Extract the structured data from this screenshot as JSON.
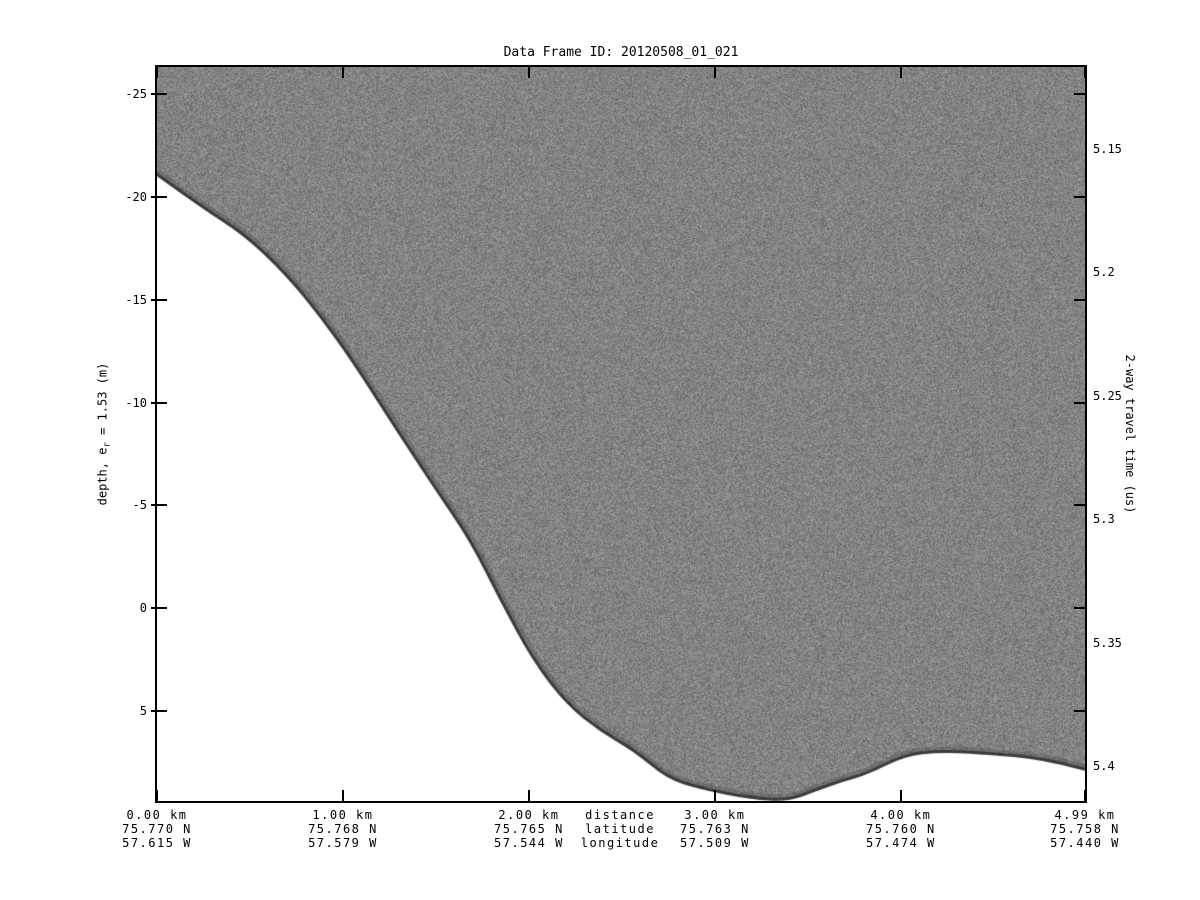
{
  "chart_data": {
    "type": "heatmap",
    "title": "Data Frame ID: 20120508_01_021",
    "description_visible": "Radar echogram: gray speckle region above a white region separated by the surface return curve",
    "axes": {
      "x": {
        "unit": "km",
        "min": 0,
        "max": 4.99,
        "ticks": [
          0,
          1,
          2,
          3,
          4,
          4.99
        ]
      },
      "depth": {
        "label": "depth, e_r = 1.53 (m)",
        "label_pre": "depth, e",
        "label_sub": "r",
        "label_post": " = 1.53 (m)",
        "min": -26.31,
        "max": 9.37,
        "ticks": [
          -25,
          -20,
          -15,
          -10,
          -5,
          0,
          5
        ]
      },
      "travel_time": {
        "label": "2-way travel time (us)",
        "min": 5.117,
        "max": 5.414,
        "ticks": [
          "5.15",
          "5.2",
          "5.25",
          "5.3",
          "5.35",
          "5.4"
        ]
      }
    },
    "footer": {
      "row_labels": [
        "distance",
        "latitude",
        "longitude"
      ],
      "row_label_km": 2.49,
      "columns": [
        {
          "km": 0,
          "distance": "0.00 km",
          "latitude": "75.770 N",
          "longitude": "57.615 W"
        },
        {
          "km": 1,
          "distance": "1.00 km",
          "latitude": "75.768 N",
          "longitude": "57.579 W"
        },
        {
          "km": 2,
          "distance": "2.00 km",
          "latitude": "75.765 N",
          "longitude": "57.544 W"
        },
        {
          "km": 3,
          "distance": "3.00 km",
          "latitude": "75.763 N",
          "longitude": "57.509 W"
        },
        {
          "km": 4,
          "distance": "4.00 km",
          "latitude": "75.760 N",
          "longitude": "57.474 W"
        },
        {
          "km": 4.99,
          "distance": "4.99 km",
          "latitude": "75.758 N",
          "longitude": "57.440 W"
        }
      ]
    },
    "surface_profile": {
      "km": [
        0.0,
        0.23,
        0.47,
        0.69,
        0.88,
        1.06,
        1.28,
        1.49,
        1.68,
        1.84,
        2.02,
        2.2,
        2.38,
        2.57,
        2.74,
        2.92,
        3.19,
        3.4,
        3.54,
        3.7,
        3.82,
        4.02,
        4.21,
        4.42,
        4.69,
        4.86,
        4.99
      ],
      "depth_m": [
        -21.0,
        -19.5,
        -18.1,
        -16.2,
        -14.1,
        -11.8,
        -8.7,
        -5.8,
        -3.3,
        -0.4,
        2.6,
        4.7,
        6.0,
        7.0,
        8.3,
        8.8,
        9.3,
        9.4,
        8.9,
        8.4,
        8.1,
        7.2,
        7.0,
        7.1,
        7.3,
        7.6,
        7.9
      ]
    },
    "style": {
      "background": "#ffffff",
      "axis_color": "#000000",
      "noise_gray_min": 104,
      "noise_gray_max": 158,
      "surface_edge_color": "rgba(25,25,25,0.6)",
      "surface_band_color": "rgba(60,60,60,0.28)",
      "below_surface_color": "#ffffff"
    }
  }
}
